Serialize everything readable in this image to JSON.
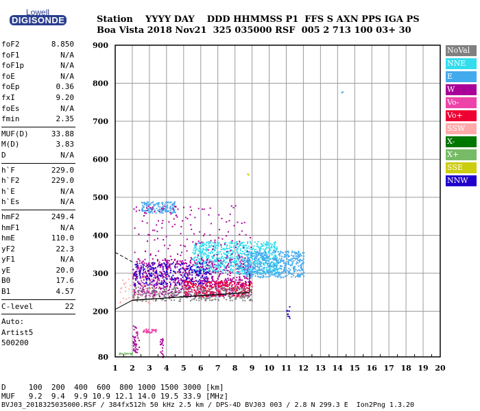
{
  "logo": {
    "line1": "Lowell",
    "line2": "DIGISONDE"
  },
  "header": {
    "line1": "Station    YYYY DAY    DDD HHMMSS P1  FFS S AXN PPS IGA PS",
    "line2": "Boa Vista 2018 Nov21  325 035000 RSF  005 2 713 100 03+ 30"
  },
  "params": [
    {
      "name": "foF2",
      "value": "8.850"
    },
    {
      "name": "foF1",
      "value": "N/A"
    },
    {
      "name": "foF1p",
      "value": "N/A"
    },
    {
      "name": "foE",
      "value": "N/A"
    },
    {
      "name": "foEp",
      "value": "0.36"
    },
    {
      "name": "fxI",
      "value": "9.20"
    },
    {
      "name": "foEs",
      "value": "N/A"
    },
    {
      "name": "fmin",
      "value": "2.35",
      "sep": true
    },
    {
      "name": "MUF(D)",
      "value": "33.88"
    },
    {
      "name": "M(D)",
      "value": "3.83"
    },
    {
      "name": "D",
      "value": "N/A",
      "sep": true
    },
    {
      "name": "h`F",
      "value": "229.0"
    },
    {
      "name": "h`F2",
      "value": "229.0"
    },
    {
      "name": "h`E",
      "value": "N/A"
    },
    {
      "name": "h`Es",
      "value": "N/A",
      "sep": true
    },
    {
      "name": "hmF2",
      "value": "249.4"
    },
    {
      "name": "hmF1",
      "value": "N/A"
    },
    {
      "name": "hmE",
      "value": "110.0"
    },
    {
      "name": "yF2",
      "value": "22.3"
    },
    {
      "name": "yF1",
      "value": "N/A"
    },
    {
      "name": "yE",
      "value": "20.0"
    },
    {
      "name": "B0",
      "value": "17.6"
    },
    {
      "name": "B1",
      "value": "4.57",
      "sep": true
    },
    {
      "name": "C-level",
      "value": "22",
      "sep": true
    }
  ],
  "auto": [
    "Auto:",
    "Artist5",
    "500200"
  ],
  "legend": [
    {
      "label": "NoVal",
      "color": "#808080"
    },
    {
      "label": "NNE",
      "color": "#33ddee"
    },
    {
      "label": "E",
      "color": "#44aaee"
    },
    {
      "label": "W",
      "color": "#aa0099"
    },
    {
      "label": "Vo-",
      "color": "#ee44aa"
    },
    {
      "label": "Vo+",
      "color": "#ee0033"
    },
    {
      "label": "SSW",
      "color": "#ffaaaa"
    },
    {
      "label": "X-",
      "color": "#007700"
    },
    {
      "label": "X+",
      "color": "#77bb66"
    },
    {
      "label": "SSE",
      "color": "#cccc11"
    },
    {
      "label": "NNW",
      "color": "#2200cc"
    }
  ],
  "footer": {
    "line1": "D     100  200  400  600  800 1000 1500 3000 [km]",
    "line2": "MUF   9.2  9.4  9.9 10.9 12.1 14.0 19.5 33.9 [MHz]",
    "line3": "BVJ03_2018325035000.RSF / 384fx512h 50 kHz 2.5 km / DPS-4D BVJ03 003 / 2.8 N 299.3 E  Ion2Png 1.3.20"
  },
  "chart_data": {
    "type": "scatter",
    "xlim": [
      1,
      20
    ],
    "ylim": [
      80,
      900
    ],
    "x_ticks": [
      1,
      2,
      3,
      4,
      5,
      6,
      7,
      8,
      9,
      10,
      11,
      12,
      13,
      14,
      15,
      16,
      17,
      18,
      19,
      20
    ],
    "y_ticks": [
      80,
      200,
      300,
      400,
      500,
      600,
      700,
      800,
      900
    ],
    "grid": true,
    "legend_position": "right",
    "profile_curve": {
      "x": [
        2.0,
        3.0,
        4.0,
        5.0,
        6.0,
        7.0,
        8.0,
        8.85
      ],
      "y": [
        229,
        232,
        235,
        238,
        241,
        244,
        247,
        249.4
      ]
    },
    "clusters": [
      {
        "series": "W",
        "x": [
          2.0,
          8.9
        ],
        "y": [
          240,
          340
        ],
        "density": 900
      },
      {
        "series": "NNE",
        "x": [
          5.5,
          10.5
        ],
        "y": [
          300,
          385
        ],
        "density": 700
      },
      {
        "series": "E",
        "x": [
          8.5,
          12.0
        ],
        "y": [
          290,
          360
        ],
        "density": 500
      },
      {
        "series": "NNW",
        "x": [
          2.0,
          6.5
        ],
        "y": [
          270,
          330
        ],
        "density": 250
      },
      {
        "series": "Vo+",
        "x": [
          5.0,
          9.0
        ],
        "y": [
          240,
          280
        ],
        "density": 250
      },
      {
        "series": "NoVal",
        "x": [
          2.0,
          9.0
        ],
        "y": [
          228,
          265
        ],
        "density": 300
      },
      {
        "series": "E",
        "x": [
          2.5,
          4.5
        ],
        "y": [
          460,
          490
        ],
        "density": 140
      },
      {
        "series": "W",
        "x": [
          2.0,
          9.0
        ],
        "y": [
          340,
          480
        ],
        "density": 150
      },
      {
        "series": "SSW",
        "x": [
          1.2,
          3.5
        ],
        "y": [
          215,
          300
        ],
        "density": 60
      },
      {
        "series": "W",
        "x": [
          2.0,
          2.4
        ],
        "y": [
          92,
          165
        ],
        "density": 40
      },
      {
        "series": "Vo-",
        "x": [
          2.6,
          3.4
        ],
        "y": [
          145,
          155
        ],
        "density": 40
      },
      {
        "series": "X+",
        "x": [
          1.2,
          2.0
        ],
        "y": [
          88,
          92
        ],
        "density": 20
      },
      {
        "series": "W",
        "x": [
          3.6,
          3.8
        ],
        "y": [
          80,
          130
        ],
        "density": 20
      },
      {
        "series": "NNW",
        "x": [
          11.0,
          11.2
        ],
        "y": [
          180,
          225
        ],
        "density": 10
      },
      {
        "series": "E",
        "x": [
          14.2,
          14.3
        ],
        "y": [
          775,
          780
        ],
        "density": 2
      },
      {
        "series": "SSE",
        "x": [
          8.7,
          8.8
        ],
        "y": [
          560,
          570
        ],
        "density": 2
      }
    ]
  }
}
